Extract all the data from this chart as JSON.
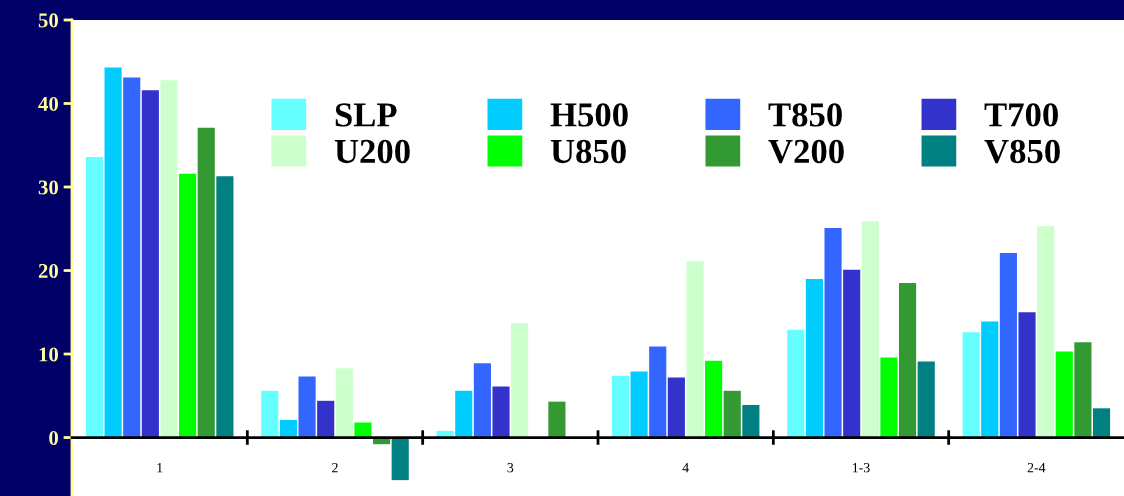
{
  "chart_data": {
    "type": "bar",
    "categories": [
      "1",
      "2",
      "3",
      "4",
      "1-3",
      "2-4"
    ],
    "series": [
      {
        "name": "SLP",
        "color": "#66ffff",
        "values": [
          33.6,
          5.6,
          0.8,
          7.4,
          12.9,
          12.6
        ]
      },
      {
        "name": "H500",
        "color": "#00ccff",
        "values": [
          44.3,
          2.1,
          5.6,
          7.9,
          19.0,
          13.9
        ]
      },
      {
        "name": "T850",
        "color": "#3366ff",
        "values": [
          43.1,
          7.3,
          8.9,
          10.9,
          25.1,
          22.1
        ]
      },
      {
        "name": "T700",
        "color": "#3333cc",
        "values": [
          41.6,
          4.4,
          6.1,
          7.2,
          20.1,
          15.0
        ]
      },
      {
        "name": "U200",
        "color": "#ccffcc",
        "values": [
          42.8,
          8.3,
          13.7,
          21.1,
          25.9,
          25.3
        ]
      },
      {
        "name": "U850",
        "color": "#00ff00",
        "values": [
          31.6,
          1.8,
          null,
          9.2,
          9.6,
          10.3
        ]
      },
      {
        "name": "V200",
        "color": "#339933",
        "values": [
          37.1,
          -0.8,
          4.3,
          5.6,
          18.5,
          11.4
        ]
      },
      {
        "name": "V850",
        "color": "#008080",
        "values": [
          31.3,
          -5.1,
          null,
          3.9,
          9.1,
          3.5
        ]
      }
    ],
    "ylim": [
      -7,
      50
    ],
    "yticks": [
      0,
      10,
      20,
      30,
      40,
      50
    ],
    "legend": "top right"
  }
}
